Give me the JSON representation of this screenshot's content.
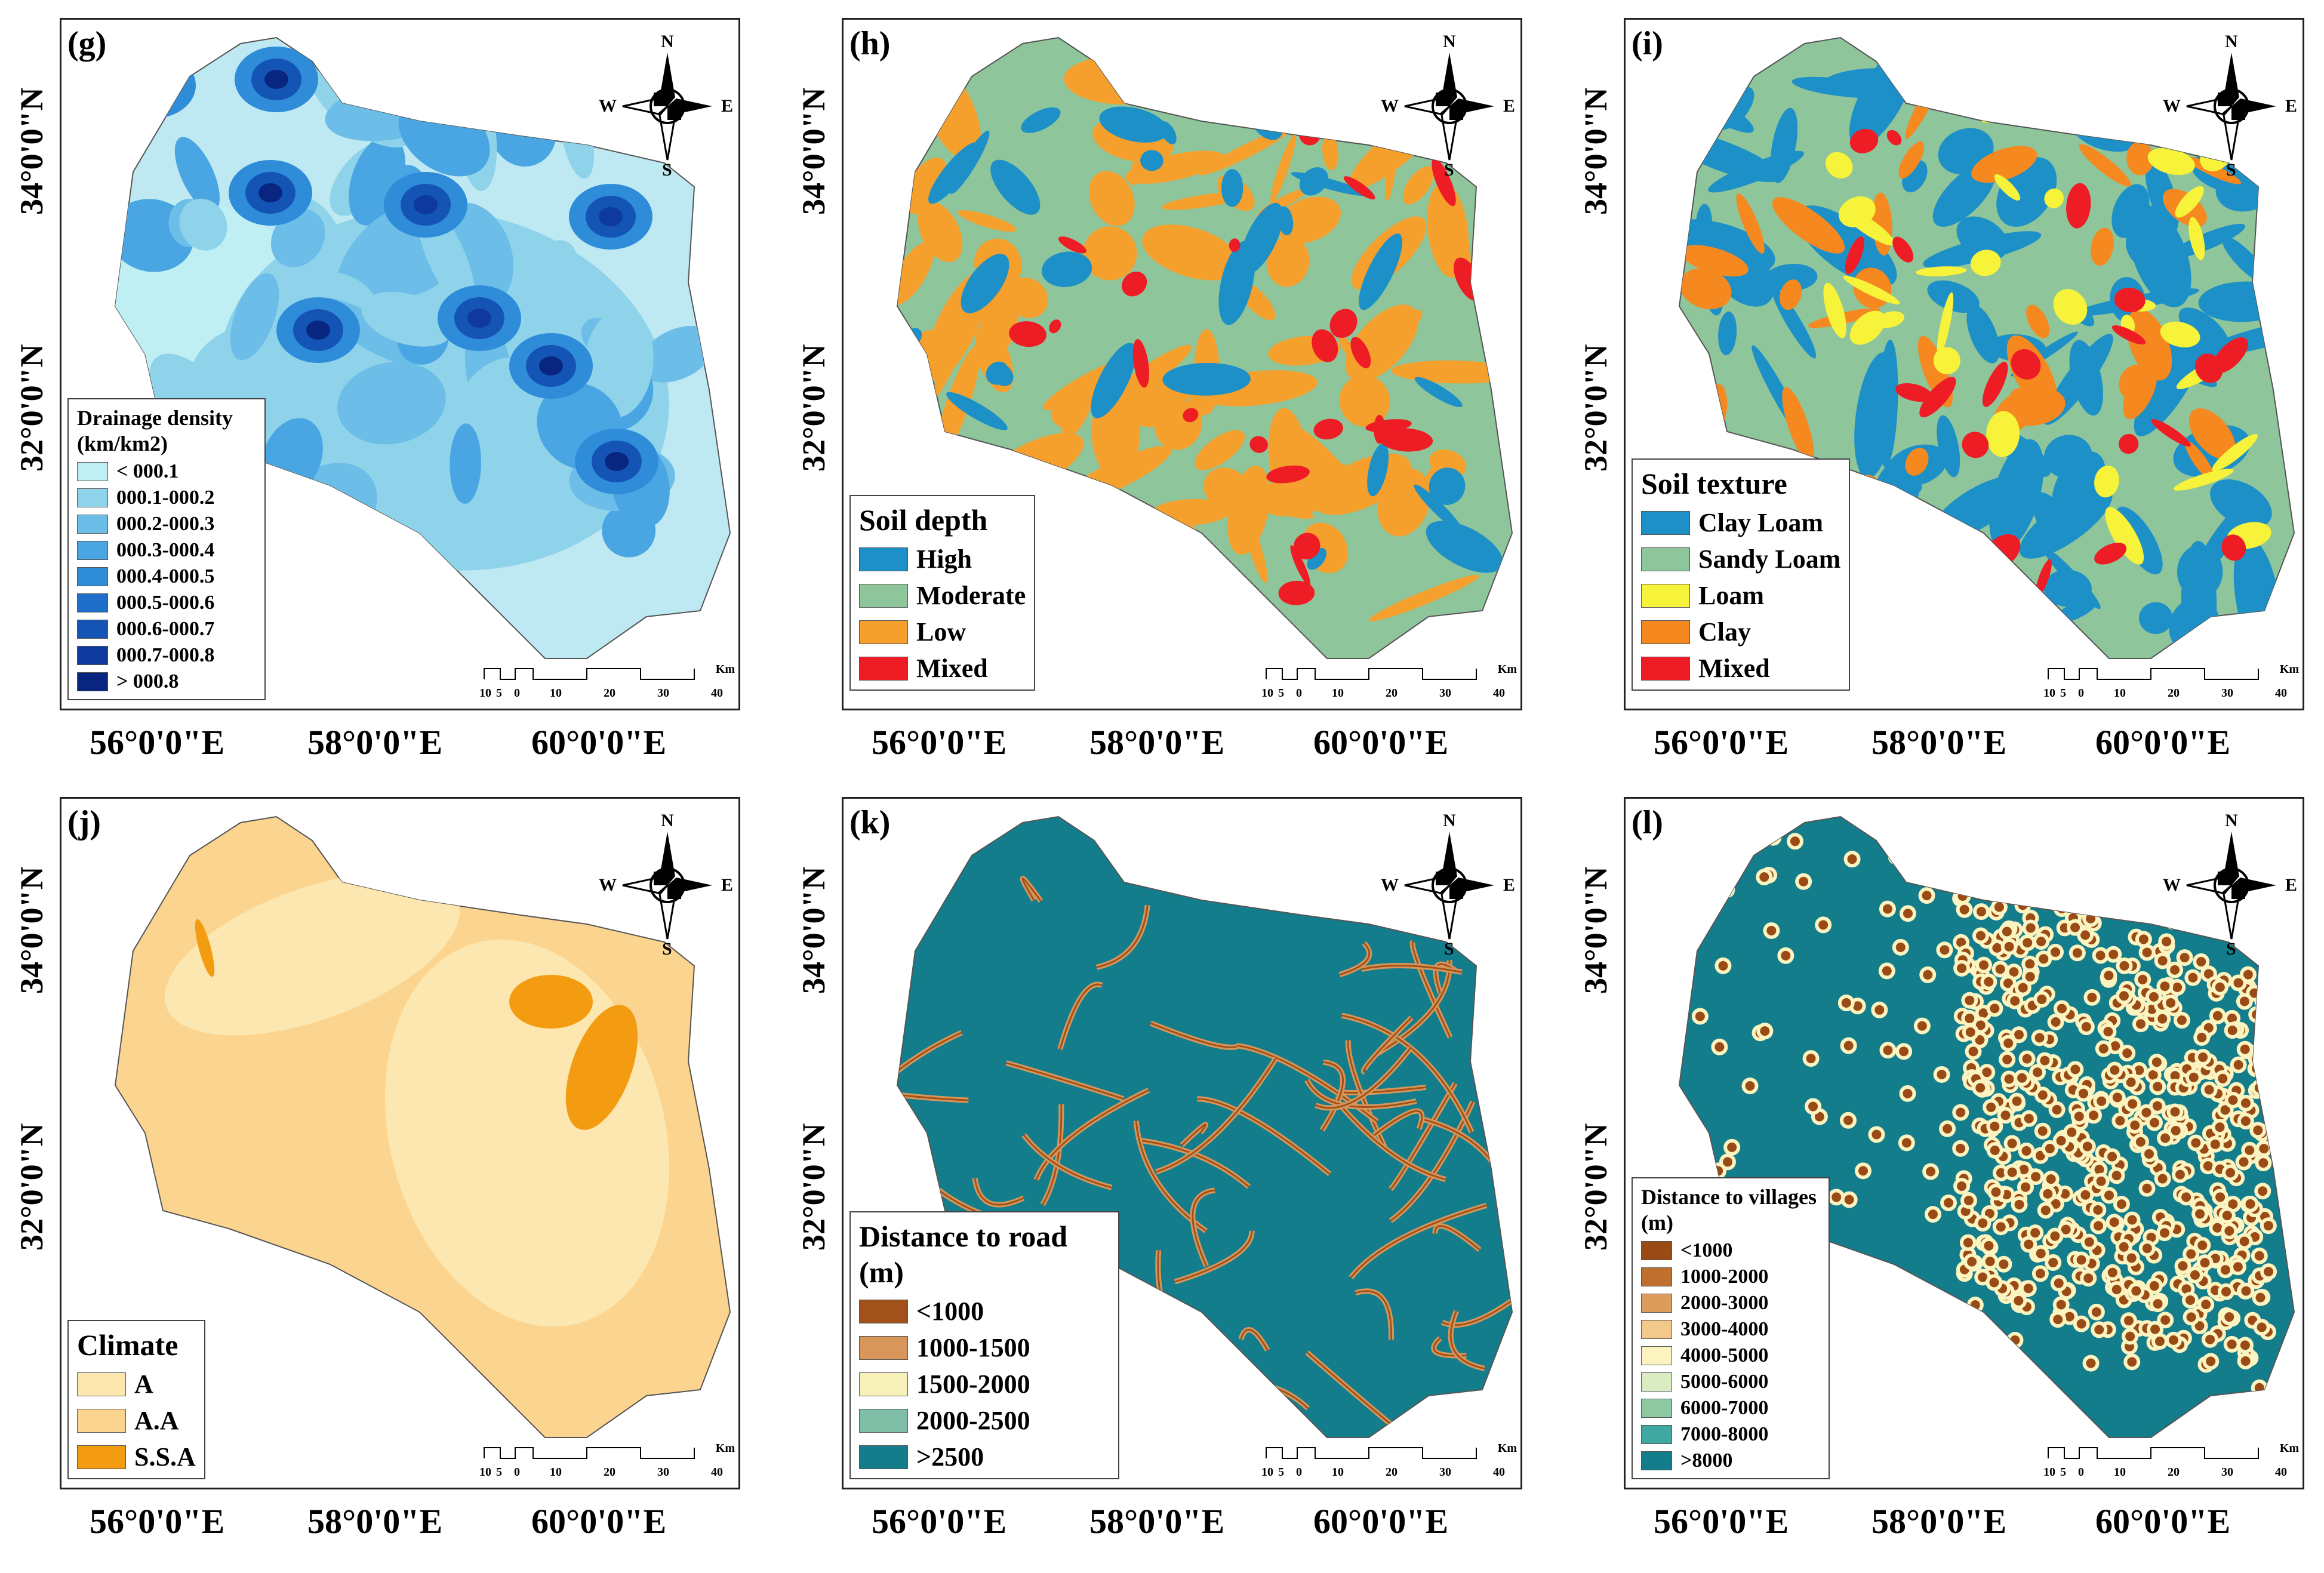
{
  "figure": {
    "latitude_labels": [
      "34°0'0\"N",
      "32°0'0\"N"
    ],
    "longitude_labels": [
      "56°0'0\"E",
      "58°0'0\"E",
      "60°0'0\"E"
    ],
    "compass": {
      "n": "N",
      "s": "S",
      "e": "E",
      "w": "W"
    },
    "scale": {
      "ticks": [
        "10",
        "5",
        "0",
        "10",
        "20",
        "30",
        "40"
      ],
      "unit": "Km"
    }
  },
  "panels": [
    {
      "label": "(g)",
      "legend_title": "Drainage density (km/km2)",
      "background": "#bfe9f2",
      "items": [
        {
          "label": "< 000.1",
          "color": "#bfeef3"
        },
        {
          "label": "000.1-000.2",
          "color": "#8fd3ea"
        },
        {
          "label": "000.2-000.3",
          "color": "#6cbde8"
        },
        {
          "label": "000.3-000.4",
          "color": "#4aa6e2"
        },
        {
          "label": "000.4-000.5",
          "color": "#2f8cd9"
        },
        {
          "label": "000.5-000.6",
          "color": "#1f6fca"
        },
        {
          "label": "000.6-000.7",
          "color": "#1454b4"
        },
        {
          "label": "000.7-000.8",
          "color": "#0d3a9c"
        },
        {
          "label": "> 000.8",
          "color": "#082580"
        }
      ]
    },
    {
      "label": "(h)",
      "legend_title": "Soil depth",
      "background": "#8fc59a",
      "items": [
        {
          "label": "High",
          "color": "#1e90c8"
        },
        {
          "label": "Moderate",
          "color": "#8fc59a"
        },
        {
          "label": "Low",
          "color": "#f5a02d"
        },
        {
          "label": "Mixed",
          "color": "#ee1c24"
        }
      ]
    },
    {
      "label": "(i)",
      "legend_title": "Soil texture",
      "background": "#8fc59a",
      "items": [
        {
          "label": "Clay Loam",
          "color": "#1e90c8"
        },
        {
          "label": "Sandy Loam",
          "color": "#8fc59a"
        },
        {
          "label": "Loam",
          "color": "#f7f23a"
        },
        {
          "label": "Clay",
          "color": "#f5881f"
        },
        {
          "label": "Mixed",
          "color": "#ee1c24"
        }
      ]
    },
    {
      "label": "(j)",
      "legend_title": "Climate",
      "background": "#fbd58f",
      "items": [
        {
          "label": "A",
          "color": "#fde7b0"
        },
        {
          "label": "A.A",
          "color": "#fbd58f"
        },
        {
          "label": "S.S.A",
          "color": "#f39c12"
        }
      ]
    },
    {
      "label": "(k)",
      "legend_title": "Distance to road (m)",
      "background": "#137d8c",
      "items": [
        {
          "label": "<1000",
          "color": "#a0521a"
        },
        {
          "label": "1000-1500",
          "color": "#d9965a"
        },
        {
          "label": "1500-2000",
          "color": "#f7f0b8"
        },
        {
          "label": "2000-2500",
          "color": "#7fbfa8"
        },
        {
          "label": ">2500",
          "color": "#137d8c"
        }
      ]
    },
    {
      "label": "(l)",
      "legend_title": "Distance to villages (m)",
      "background": "#137d8c",
      "items": [
        {
          "label": "<1000",
          "color": "#9a4a14"
        },
        {
          "label": "1000-2000",
          "color": "#c0702e"
        },
        {
          "label": "2000-3000",
          "color": "#dc9d5c"
        },
        {
          "label": "3000-4000",
          "color": "#f2c98a"
        },
        {
          "label": "4000-5000",
          "color": "#fbf3c0"
        },
        {
          "label": "5000-6000",
          "color": "#d9ecc2"
        },
        {
          "label": "6000-7000",
          "color": "#8ec9a4"
        },
        {
          "label": "7000-8000",
          "color": "#3fa8a0"
        },
        {
          "label": ">8000",
          "color": "#137d8c"
        }
      ]
    }
  ]
}
